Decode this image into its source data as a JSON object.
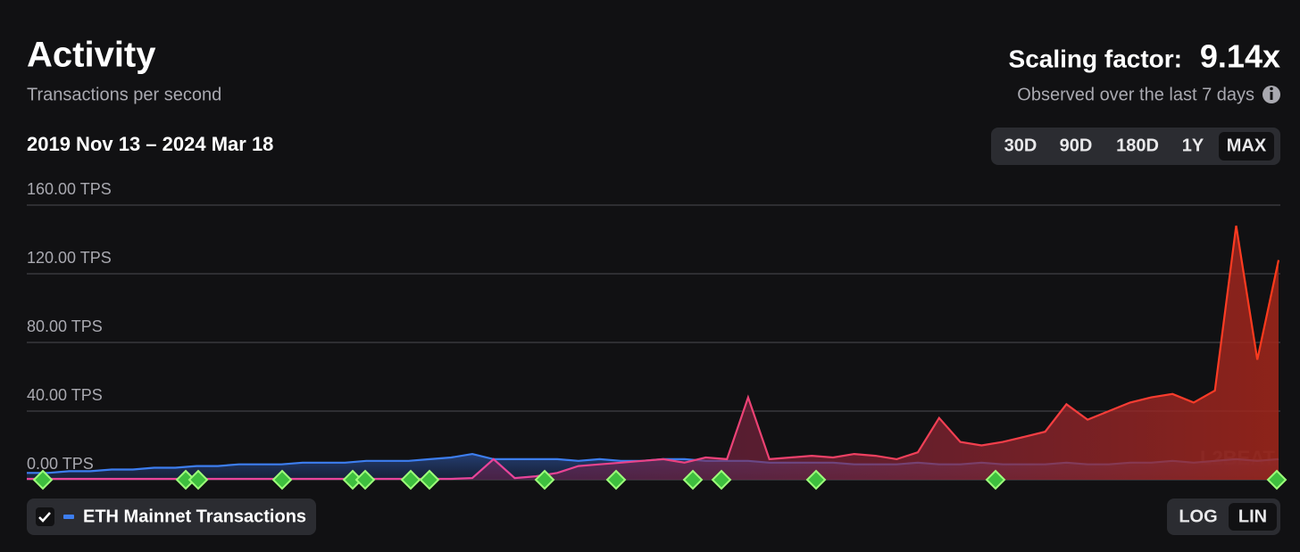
{
  "header": {
    "title": "Activity",
    "subtitle": "Transactions per second",
    "scaling_label": "Scaling factor:",
    "scaling_value": "9.14x",
    "scaling_note": "Observed over the last 7 days",
    "date_range": "2019 Nov 13 – 2024 Mar 18"
  },
  "range_buttons": [
    "30D",
    "90D",
    "180D",
    "1Y",
    "MAX"
  ],
  "selected_range": 4,
  "scale_buttons": [
    "LOG",
    "LIN"
  ],
  "selected_scale": 1,
  "watermark": "L2BEAT",
  "chart_data": {
    "type": "area",
    "ylim": [
      0,
      160
    ],
    "yticks": [
      {
        "value": 0,
        "label": "0.00 TPS"
      },
      {
        "value": 40,
        "label": "40.00 TPS"
      },
      {
        "value": 80,
        "label": "80.00 TPS"
      },
      {
        "value": 120,
        "label": "120.00 TPS"
      },
      {
        "value": 160,
        "label": "160.00 TPS"
      }
    ],
    "grid": true,
    "log_scale": false,
    "series": [
      {
        "name": "ETH Mainnet Transactions",
        "color": "#3d7ef0",
        "values": [
          4,
          4,
          5,
          5,
          6,
          6,
          7,
          7,
          8,
          8,
          9,
          9,
          9,
          10,
          10,
          10,
          11,
          11,
          11,
          12,
          13,
          15,
          12,
          12,
          12,
          12,
          11,
          12,
          11,
          11,
          12,
          12,
          11,
          11,
          11,
          10,
          10,
          10,
          10,
          9,
          9,
          9,
          10,
          9,
          9,
          10,
          9,
          9,
          9,
          10,
          9,
          9,
          10,
          10,
          11,
          10,
          11,
          12,
          11,
          12
        ]
      },
      {
        "color": "#ff3a2a",
        "values": [
          0.5,
          0.5,
          0.5,
          0.5,
          0.5,
          0.5,
          0.5,
          0.5,
          0.5,
          0.5,
          0.5,
          0.5,
          0.5,
          0.5,
          0.5,
          0.5,
          0.5,
          0.5,
          0.5,
          0.5,
          0.5,
          1,
          12,
          1,
          2,
          4,
          8,
          9,
          10,
          11,
          12,
          10,
          13,
          12,
          48,
          12,
          13,
          14,
          13,
          15,
          14,
          12,
          16,
          36,
          22,
          20,
          22,
          25,
          28,
          44,
          35,
          40,
          45,
          48,
          50,
          45,
          52,
          148,
          70,
          128
        ]
      }
    ]
  }
}
